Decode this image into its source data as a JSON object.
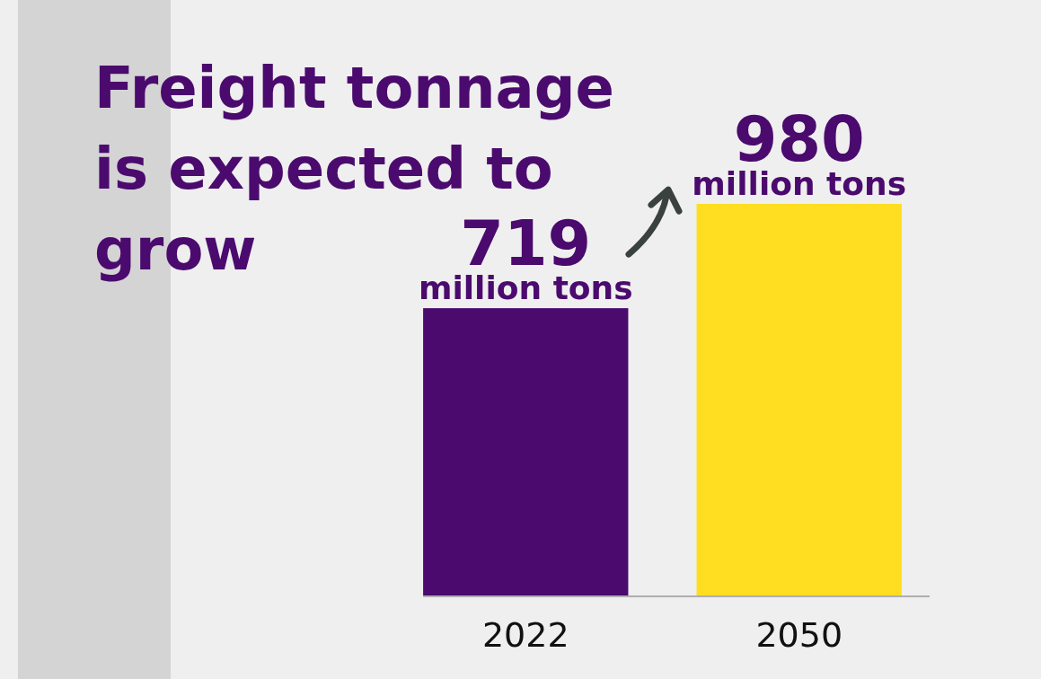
{
  "chart_data": {
    "type": "bar",
    "title": "Freight tonnage is expected to grow",
    "categories": [
      "2022",
      "2050"
    ],
    "values": [
      719,
      980
    ],
    "colors": [
      "#4b0a6e",
      "#ffde21"
    ],
    "value_labels": [
      "719 million tons",
      "980 million tons"
    ]
  }
}
